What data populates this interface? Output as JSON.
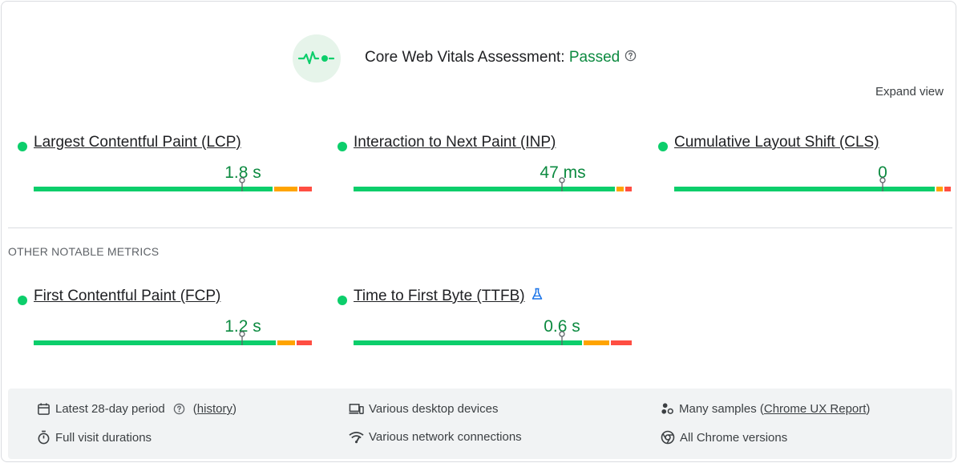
{
  "header": {
    "title": "Core Web Vitals Assessment: ",
    "status": "Passed",
    "status_color": "#0c8a40",
    "icon": "vitals-pulse-icon",
    "help_icon": "help-circle-icon"
  },
  "expand_view": "Expand view",
  "core_metrics": [
    {
      "name": "Largest Contentful Paint (LCP)",
      "value": "1.8 s",
      "status": "good"
    },
    {
      "name": "Interaction to Next Paint (INP)",
      "value": "47 ms",
      "status": "good"
    },
    {
      "name": "Cumulative Layout Shift (CLS)",
      "value": "0",
      "status": "good"
    }
  ],
  "other_label": "OTHER NOTABLE METRICS",
  "other_metrics": [
    {
      "name": "First Contentful Paint (FCP)",
      "value": "1.2 s",
      "status": "good"
    },
    {
      "name": "Time to First Byte (TTFB)",
      "value": "0.6 s",
      "status": "good",
      "badge_icon": "flask-icon"
    }
  ],
  "colors": {
    "good": "#0cce6b",
    "needs_improvement": "#ffa400",
    "poor": "#ff4e42"
  },
  "footer": {
    "period": "Latest 28-day period",
    "history_open": "(",
    "history_link": "history",
    "history_close": ")",
    "durations": "Full visit durations",
    "devices": "Various desktop devices",
    "connections": "Various network connections",
    "samples_prefix": "Many samples (",
    "samples_link": "Chrome UX Report",
    "samples_suffix": ")",
    "versions": "All Chrome versions"
  }
}
